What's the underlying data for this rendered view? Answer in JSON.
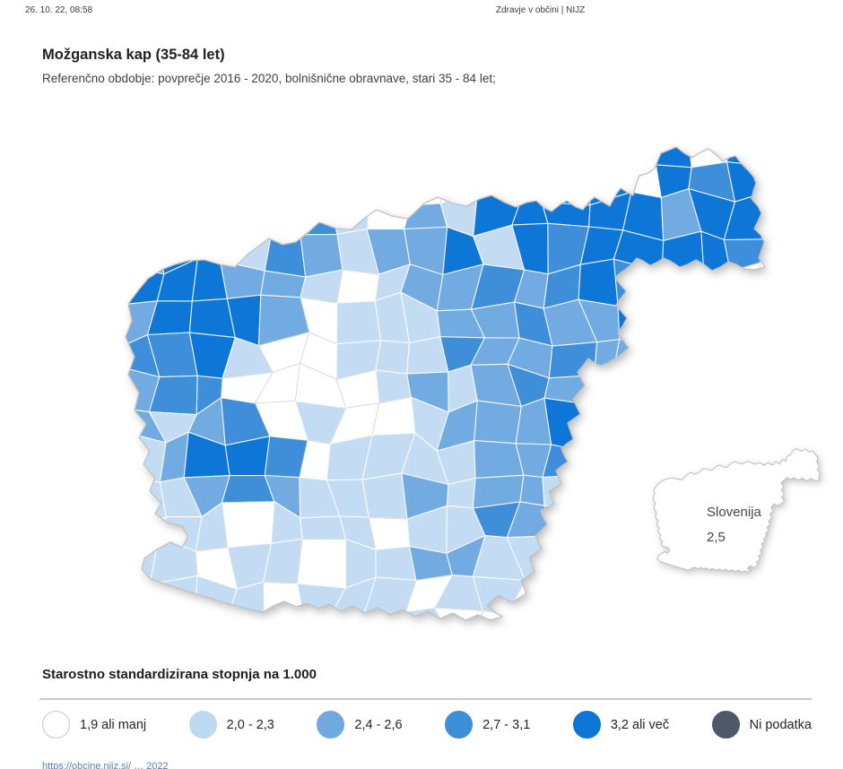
{
  "header": {
    "datetime": "26. 10. 22, 08:58",
    "site_title": "Zdravje v občini | NIJZ"
  },
  "title": "Možganska kap (35-84 let)",
  "subtitle": "Referenčno obdobje: povprečje 2016 - 2020, bolnišnične obravnave, stari 35 - 84 let;",
  "map": {
    "palette": [
      "#ffffff",
      "#c3dcf3",
      "#72abe1",
      "#3e8ed9",
      "#0d76d6"
    ],
    "white_border": "#d6d6d6",
    "outline_color": "#c2c2c2",
    "intensity_grid": [
      "9999999999999924440449",
      "9999999999992444044449",
      "9999911210224444424449",
      "9924412112242424444299",
      "9144432101223224344999",
      "9123442001122322429999",
      "9133400010122232299999",
      "9923300001112324299999",
      "9912330100122232999999",
      "9912443010112229999999",
      "9911242111212219999999",
      "9901101110122129999999",
      "9111011011221299999999",
      "9911110111012999999999",
      "9991199911199999999999"
    ],
    "inset": {
      "country_label": "Slovenija",
      "country_value": "2,5"
    }
  },
  "legend": {
    "title": "Starostno standardizirana stopnja na 1.000",
    "items": [
      {
        "label": "1,9 ali manj",
        "color": "#ffffff",
        "border": "#c9c9c9"
      },
      {
        "label": "2,0 - 2,3",
        "color": "#bdd9f1",
        "border": "#bdd9f1"
      },
      {
        "label": "2,4 - 2,6",
        "color": "#6fa9e0",
        "border": "#6fa9e0"
      },
      {
        "label": "2,7 - 3,1",
        "color": "#3e8ed9",
        "border": "#3e8ed9"
      },
      {
        "label": "3,2 ali več",
        "color": "#0d76d6",
        "border": "#0d76d6"
      },
      {
        "label": "Ni podatka",
        "color": "#4d5868",
        "border": "#4d5868"
      }
    ]
  },
  "footer": {
    "url_fragment": "https://obcine.nijz.si/ … 2022"
  },
  "chart_data": {
    "type": "choropleth-map",
    "title": "Možganska kap (35-84 let)",
    "measure": "Starostno standardizirana stopnja na 1.000",
    "reference_period": "povprečje 2016 - 2020, bolnišnične obravnave, stari 35 - 84 let",
    "national": {
      "name": "Slovenija",
      "value": "2,5"
    },
    "classes": [
      {
        "label": "1,9 ali manj",
        "color": "#ffffff"
      },
      {
        "label": "2,0 - 2,3",
        "color": "#bdd9f1"
      },
      {
        "label": "2,4 - 2,6",
        "color": "#6fa9e0"
      },
      {
        "label": "2,7 - 3,1",
        "color": "#3e8ed9"
      },
      {
        "label": "3,2 ali več",
        "color": "#0d76d6"
      },
      {
        "label": "Ni podatka",
        "color": "#4d5868"
      }
    ],
    "regional_pattern": "northeast and northwest mostly high (dark blue); central Slovenia mostly low (white/light); southwest coast light; southeast mixed medium"
  }
}
